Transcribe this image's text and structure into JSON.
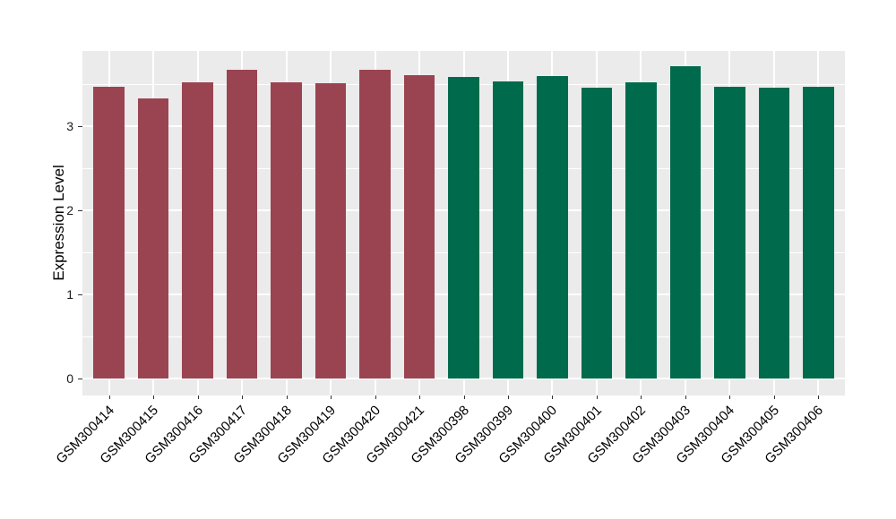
{
  "figure": {
    "background_color": "#FFFFFF",
    "panel_background_color": "#EBEBEB",
    "gridline_color": "#FFFFFF",
    "maroon_bar_color": "#9A4452",
    "green_bar_color": "#006B4C"
  },
  "chart_data": {
    "type": "bar",
    "title": "",
    "xlabel": "",
    "ylabel": "Expression Level",
    "legend": "none",
    "grid": "major and minor horizontal white gridlines, vertical white gridlines at each category",
    "ylim": [
      -0.19,
      3.89
    ],
    "yticks": [
      0,
      1,
      2,
      3
    ],
    "ytick_labels": [
      "0",
      "1",
      "2",
      "3"
    ],
    "minor_yticks": [
      0.5,
      1.5,
      2.5,
      3.5
    ],
    "categories": [
      "GSM300414",
      "GSM300415",
      "GSM300416",
      "GSM300417",
      "GSM300418",
      "GSM300419",
      "GSM300420",
      "GSM300421",
      "GSM300398",
      "GSM300399",
      "GSM300400",
      "GSM300401",
      "GSM300402",
      "GSM300403",
      "GSM300404",
      "GSM300405",
      "GSM300406"
    ],
    "values": [
      3.47,
      3.33,
      3.52,
      3.67,
      3.52,
      3.51,
      3.67,
      3.61,
      3.58,
      3.53,
      3.6,
      3.46,
      3.52,
      3.71,
      3.47,
      3.46,
      3.47
    ],
    "bar_colors": [
      "#9A4452",
      "#9A4452",
      "#9A4452",
      "#9A4452",
      "#9A4452",
      "#9A4452",
      "#9A4452",
      "#9A4452",
      "#006B4C",
      "#006B4C",
      "#006B4C",
      "#006B4C",
      "#006B4C",
      "#006B4C",
      "#006B4C",
      "#006B4C",
      "#006B4C"
    ]
  }
}
